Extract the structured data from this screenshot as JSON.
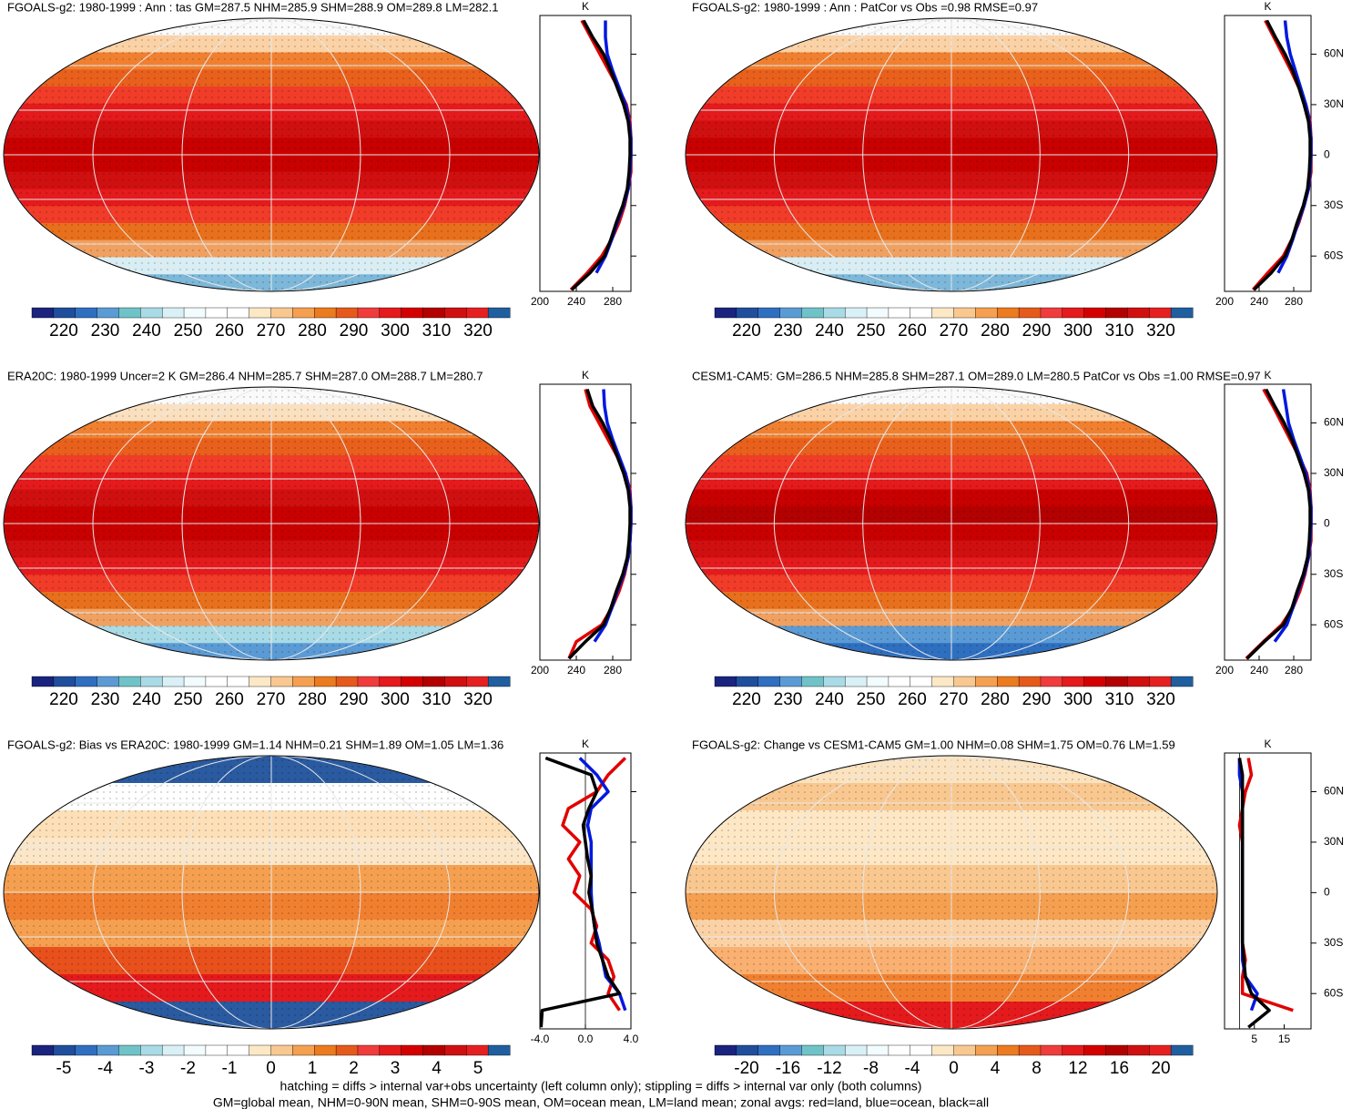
{
  "colorbar_colors": [
    "#1a237e",
    "#1f4e9c",
    "#2f6fc0",
    "#5b9bd5",
    "#6fc3c8",
    "#a9dbe6",
    "#d9f1f6",
    "#f2fbfd",
    "#ffffff",
    "#ffffff",
    "#fde8c6",
    "#f9c890",
    "#f5a050",
    "#ec7a1f",
    "#e55a1a",
    "#f03c3c",
    "#e41a1c",
    "#d40000",
    "#b30000",
    "#d01010",
    "#e62020",
    "#1f5fa0"
  ],
  "zonal_lat": [
    80,
    70,
    60,
    50,
    40,
    30,
    20,
    10,
    0,
    -10,
    -20,
    -30,
    -40,
    -50,
    -60,
    -70,
    -80
  ],
  "lat_ticks": [
    {
      "value": 60,
      "label": "60N"
    },
    {
      "value": 30,
      "label": "30N"
    },
    0,
    {
      "value": -30,
      "label": "30S"
    },
    {
      "value": -60,
      "label": "60S"
    }
  ],
  "panels": [
    {
      "title": "FGOALS-g2: 1980-1999 : Ann : tas GM=287.5 NHM=285.9 SHM=288.9 OM=289.8 LM=282.1",
      "colorbar_labels": [
        220,
        230,
        240,
        250,
        260,
        270,
        280,
        290,
        300,
        310,
        320
      ],
      "map_colors": [
        "#fafafa",
        "#fbd2a6",
        "#f08030",
        "#e8601c",
        "#f03c28",
        "#e41a1c",
        "#d01010",
        "#c80000",
        "#c80000",
        "#d01010",
        "#e41a1c",
        "#f03c28",
        "#e8701c",
        "#f0a060",
        "#d8eef4",
        "#7db8da"
      ],
      "lat_labels": false,
      "zonal": {
        "unit": "K",
        "xlim": [
          200,
          300
        ],
        "ylim": [
          -81,
          83
        ],
        "xticks": [
          200,
          240,
          280
        ],
        "series": [
          {
            "color": "#e00000",
            "values": [
              246,
              256,
              266,
              276,
              286,
              295,
              299,
              300,
              300,
              300,
              297,
              293,
              287,
              279,
              268,
              252,
              234
            ]
          },
          {
            "color": "#0018e0",
            "values": [
              272,
              272,
              274,
              280,
              287,
              294,
              298,
              300,
              300,
              299,
              297,
              292,
              285,
              279,
              272,
              262,
              null
            ]
          },
          {
            "color": "#000000",
            "values": [
              248,
              258,
              270,
              278,
              285,
              292,
              297,
              299,
              299,
              298,
              296,
              291,
              284,
              278,
              271,
              255,
              235
            ]
          }
        ]
      }
    },
    {
      "title": "FGOALS-g2: 1980-1999 : Ann : PatCor vs Obs =0.98 RMSE=0.97",
      "colorbar_labels": [
        220,
        230,
        240,
        250,
        260,
        270,
        280,
        290,
        300,
        310,
        320
      ],
      "map_colors": [
        "#fafafa",
        "#fbd2a6",
        "#f08030",
        "#e8601c",
        "#f03c28",
        "#e41a1c",
        "#d01010",
        "#c80000",
        "#c80000",
        "#d01010",
        "#e41a1c",
        "#f03c28",
        "#e8701c",
        "#f0a060",
        "#d8eef4",
        "#7db8da"
      ],
      "lat_labels": true,
      "zonal": {
        "unit": "K",
        "xlim": [
          200,
          300
        ],
        "ylim": [
          -81,
          83
        ],
        "xticks": [
          200,
          240,
          280
        ],
        "series": [
          {
            "color": "#e00000",
            "values": [
              247,
              257,
              267,
              277,
              286,
              294,
              299,
              300,
              300,
              300,
              297,
              292,
              286,
              278,
              268,
              250,
              233
            ]
          },
          {
            "color": "#0018e0",
            "values": [
              270,
              272,
              276,
              282,
              288,
              294,
              298,
              300,
              300,
              299,
              297,
              292,
              285,
              279,
              272,
              262,
              null
            ]
          },
          {
            "color": "#000000",
            "values": [
              249,
              259,
              270,
              279,
              286,
              292,
              297,
              299,
              299,
              298,
              296,
              291,
              284,
              278,
              270,
              254,
              234
            ]
          }
        ]
      }
    },
    {
      "title": "ERA20C: 1980-1999 Uncer=2 K GM=286.4 NHM=285.7 SHM=287.0 OM=288.7 LM=280.7",
      "colorbar_labels": [
        220,
        230,
        240,
        250,
        260,
        270,
        280,
        290,
        300,
        310,
        320
      ],
      "map_colors": [
        "#fafafa",
        "#fbe0c0",
        "#f08030",
        "#e8601c",
        "#f03c28",
        "#e41a1c",
        "#d01010",
        "#c80000",
        "#c80000",
        "#d01010",
        "#e41a1c",
        "#f03c28",
        "#e8701c",
        "#f0a060",
        "#a9dbe6",
        "#5b9bd5"
      ],
      "lat_labels": false,
      "zonal": {
        "unit": "K",
        "xlim": [
          200,
          300
        ],
        "ylim": [
          -81,
          83
        ],
        "xticks": [
          200,
          240,
          280
        ],
        "series": [
          {
            "color": "#e00000",
            "values": [
              250,
              255,
              265,
              275,
              285,
              294,
              299,
              300,
              300,
              299,
              297,
              293,
              287,
              279,
              268,
              240,
              232
            ]
          },
          {
            "color": "#0018e0",
            "values": [
              270,
              271,
              274,
              280,
              287,
              294,
              298,
              300,
              300,
              299,
              297,
              292,
              285,
              279,
              272,
              260,
              null
            ]
          },
          {
            "color": "#000000",
            "values": [
              252,
              258,
              269,
              278,
              285,
              292,
              297,
              299,
              299,
              298,
              296,
              291,
              284,
              278,
              270,
              250,
              232
            ]
          }
        ]
      }
    },
    {
      "title": "CESM1-CAM5: GM=286.5 NHM=285.8 SHM=287.1 OM=289.0 LM=280.5 PatCor vs Obs =1.00 RMSE=0.97",
      "colorbar_labels": [
        220,
        230,
        240,
        250,
        260,
        270,
        280,
        290,
        300,
        310,
        320
      ],
      "map_colors": [
        "#fafafa",
        "#fbd2a6",
        "#f08030",
        "#e8601c",
        "#f03c28",
        "#e41a1c",
        "#c80000",
        "#b30000",
        "#c80000",
        "#d01010",
        "#e41a1c",
        "#f03c28",
        "#e8701c",
        "#f0a060",
        "#5b9bd5",
        "#2f6fc0"
      ],
      "lat_labels": true,
      "zonal": {
        "unit": "K",
        "xlim": [
          200,
          300
        ],
        "ylim": [
          -81,
          83
        ],
        "xticks": [
          200,
          240,
          280
        ],
        "series": [
          {
            "color": "#e00000",
            "values": [
              245,
              256,
              266,
              276,
              286,
              295,
              299,
              300,
              300,
              300,
              297,
              293,
              287,
              279,
              266,
              245,
              225
            ]
          },
          {
            "color": "#0018e0",
            "values": [
              268,
              271,
              274,
              280,
              287,
              294,
              298,
              300,
              300,
              299,
              297,
              292,
              285,
              279,
              272,
              258,
              null
            ]
          },
          {
            "color": "#000000",
            "values": [
              248,
              258,
              269,
              278,
              285,
              292,
              297,
              299,
              299,
              298,
              296,
              291,
              284,
              278,
              268,
              246,
              226
            ]
          }
        ]
      }
    },
    {
      "title": "FGOALS-g2: Bias vs ERA20C: 1980-1999 GM=1.14 NHM=0.21 SHM=1.89 OM=1.05 LM=1.36",
      "colorbar_labels": [
        -5,
        -4,
        -3,
        -2,
        -1,
        0,
        1,
        2,
        3,
        4,
        5
      ],
      "map_colors": [
        "#2a5aa0",
        "#ffffff",
        "#fde0b8",
        "#fbe6c8",
        "#f5a050",
        "#f08030",
        "#f5a050",
        "#e8501c",
        "#e41a1c",
        "#2a5aa0"
      ],
      "lat_labels": false,
      "zonal": {
        "unit": "K",
        "xlim": [
          -4,
          4
        ],
        "ylim": [
          -81,
          83
        ],
        "xticks": [
          {
            "value": -4,
            "label": "-4.0"
          },
          {
            "value": 0,
            "label": "0.0"
          },
          {
            "value": 4,
            "label": "4.0"
          }
        ],
        "series": [
          {
            "color": "#e00000",
            "values": [
              3.5,
              2,
              1,
              -1.5,
              -2,
              -0.5,
              -1.5,
              -0.5,
              -1,
              0.5,
              1,
              0.5,
              2,
              2.5,
              2,
              3,
              null
            ]
          },
          {
            "color": "#0018e0",
            "values": [
              -0.5,
              1,
              2,
              0.5,
              0.2,
              0.5,
              0.5,
              0.5,
              0.5,
              0.6,
              0.8,
              1.2,
              1.5,
              1.8,
              3,
              3.5,
              null
            ]
          },
          {
            "color": "#000000",
            "values": [
              -3.5,
              0.5,
              1,
              0.3,
              -0.2,
              0,
              0.2,
              0.5,
              0.3,
              0.6,
              0.8,
              1,
              1.5,
              2,
              3,
              -3.8,
              -3.9
            ]
          }
        ]
      }
    },
    {
      "title": "FGOALS-g2: Change vs CESM1-CAM5 GM=1.00 NHM=0.08 SHM=1.75 OM=0.76 LM=1.59",
      "colorbar_labels": [
        -20,
        -16,
        -12,
        -8,
        -4,
        0,
        4,
        8,
        12,
        16,
        20
      ],
      "map_colors": [
        "#fbe3c0",
        "#f9c890",
        "#fde7c5",
        "#fde7c5",
        "#f9c890",
        "#f5a050",
        "#fbd2a6",
        "#f9b070",
        "#f08030",
        "#e41a1c"
      ],
      "lat_labels": true,
      "zonal": {
        "unit": "K",
        "xlim": [
          -5,
          24
        ],
        "ylim": [
          -81,
          83
        ],
        "xticks": [
          5,
          15
        ],
        "series": [
          {
            "color": "#e00000",
            "values": [
              3,
              4,
              2,
              1,
              0,
              1,
              1,
              1,
              1,
              1,
              1,
              1,
              2,
              1,
              1,
              18,
              null
            ]
          },
          {
            "color": "#0018e0",
            "values": [
              0,
              0,
              1,
              1,
              1,
              1,
              1,
              1,
              1,
              1,
              1,
              1,
              1,
              2,
              6,
              4,
              null
            ]
          },
          {
            "color": "#000000",
            "values": [
              0,
              1,
              1,
              1,
              1,
              1,
              1,
              1,
              1,
              1,
              1,
              1,
              1.5,
              2,
              4,
              10,
              3
            ]
          }
        ]
      }
    }
  ],
  "notes": [
    "hatching = diffs > internal var+obs uncertainty (left column only); stippling = diffs > internal var only (both columns)",
    "GM=global mean, NHM=0-90N mean, SHM=0-90S mean, OM=ocean mean, LM=land mean; zonal avgs: red=land, blue=ocean, black=all"
  ]
}
